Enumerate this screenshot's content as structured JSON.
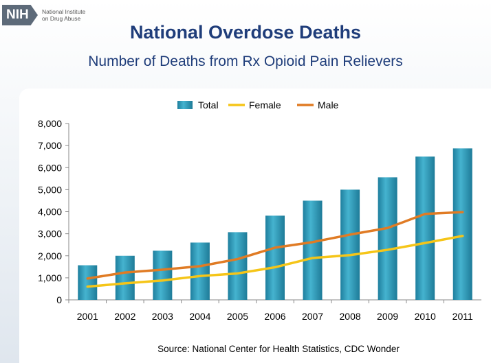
{
  "header": {
    "logo_mark": "NIH",
    "logo_line1": "National Institute",
    "logo_line2": "on Drug Abuse",
    "title": "National Overdose Deaths",
    "subtitle": "Number of Deaths from Rx Opioid Pain Relievers"
  },
  "source": "Source: National Center for Health Statistics, CDC Wonder",
  "colors": {
    "total": "#2e9ab8",
    "female": "#f5c518",
    "male": "#e07b24"
  },
  "chart_data": {
    "type": "bar",
    "categories": [
      "2001",
      "2002",
      "2003",
      "2004",
      "2005",
      "2006",
      "2007",
      "2008",
      "2009",
      "2010",
      "2011"
    ],
    "series": [
      {
        "name": "Total",
        "type": "bar",
        "values": [
          1570,
          2000,
          2230,
          2600,
          3070,
          3820,
          4500,
          5000,
          5560,
          6500,
          6870
        ]
      },
      {
        "name": "Female",
        "type": "line",
        "values": [
          600,
          750,
          880,
          1080,
          1200,
          1480,
          1900,
          2030,
          2270,
          2580,
          2900
        ]
      },
      {
        "name": "Male",
        "type": "line",
        "values": [
          970,
          1240,
          1370,
          1530,
          1850,
          2370,
          2620,
          2960,
          3260,
          3900,
          3980
        ]
      }
    ],
    "ylim": [
      0,
      8000
    ],
    "yticks": [
      0,
      1000,
      2000,
      3000,
      4000,
      5000,
      6000,
      7000,
      8000
    ],
    "ytick_labels": [
      "0",
      "1,000",
      "2,000",
      "3,000",
      "4,000",
      "5,000",
      "6,000",
      "7,000",
      "8,000"
    ],
    "legend_position": "top-center",
    "grid": false
  }
}
